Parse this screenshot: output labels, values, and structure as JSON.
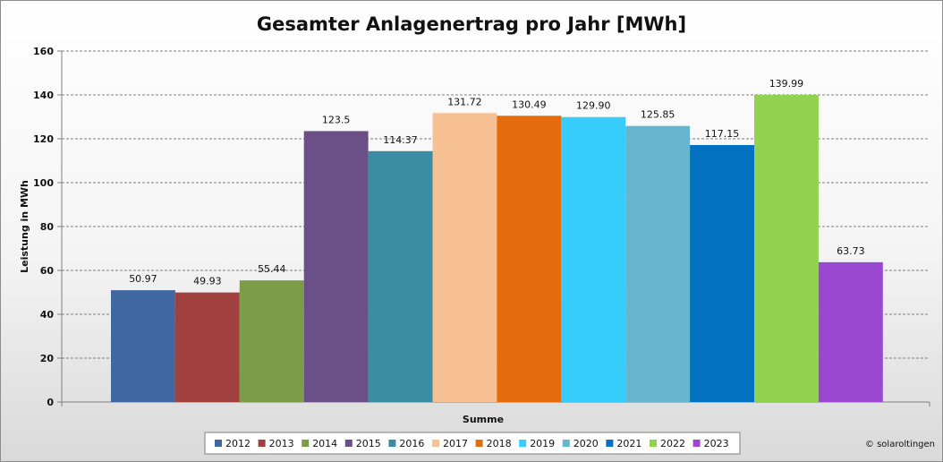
{
  "chart_data": {
    "type": "bar",
    "title": "Gesamter Anlagenertrag pro Jahr [MWh]",
    "xlabel": "Summe",
    "ylabel": "Leistung in MWh",
    "ylim": [
      0,
      160
    ],
    "yticks": [
      0,
      20,
      40,
      60,
      80,
      100,
      120,
      140,
      160
    ],
    "grid": true,
    "legend_position": "bottom",
    "categories": [
      "Summe"
    ],
    "series": [
      {
        "name": "2012",
        "value": 50.97,
        "label": "50.97",
        "color": "#4067a0"
      },
      {
        "name": "2013",
        "value": 49.93,
        "label": "49.93",
        "color": "#a04140"
      },
      {
        "name": "2014",
        "value": 55.44,
        "label": "55.44",
        "color": "#7d9c4a"
      },
      {
        "name": "2015",
        "value": 123.5,
        "label": "123.5",
        "color": "#6a5086"
      },
      {
        "name": "2016",
        "value": 114.37,
        "label": "114.37",
        "color": "#3b8da3"
      },
      {
        "name": "2017",
        "value": 131.72,
        "label": "131.72",
        "color": "#f8c194"
      },
      {
        "name": "2018",
        "value": 130.49,
        "label": "130.49",
        "color": "#e36c0f"
      },
      {
        "name": "2019",
        "value": 129.9,
        "label": "129.90",
        "color": "#36ccfb"
      },
      {
        "name": "2020",
        "value": 125.85,
        "label": "125.85",
        "color": "#66b6cf"
      },
      {
        "name": "2021",
        "value": 117.15,
        "label": "117.15",
        "color": "#0271c0"
      },
      {
        "name": "2022",
        "value": 139.99,
        "label": "139.99",
        "color": "#93d150"
      },
      {
        "name": "2023",
        "value": 63.73,
        "label": "63.73",
        "color": "#9a48cf"
      }
    ]
  },
  "footer": {
    "copyright": "© solaroltingen"
  }
}
